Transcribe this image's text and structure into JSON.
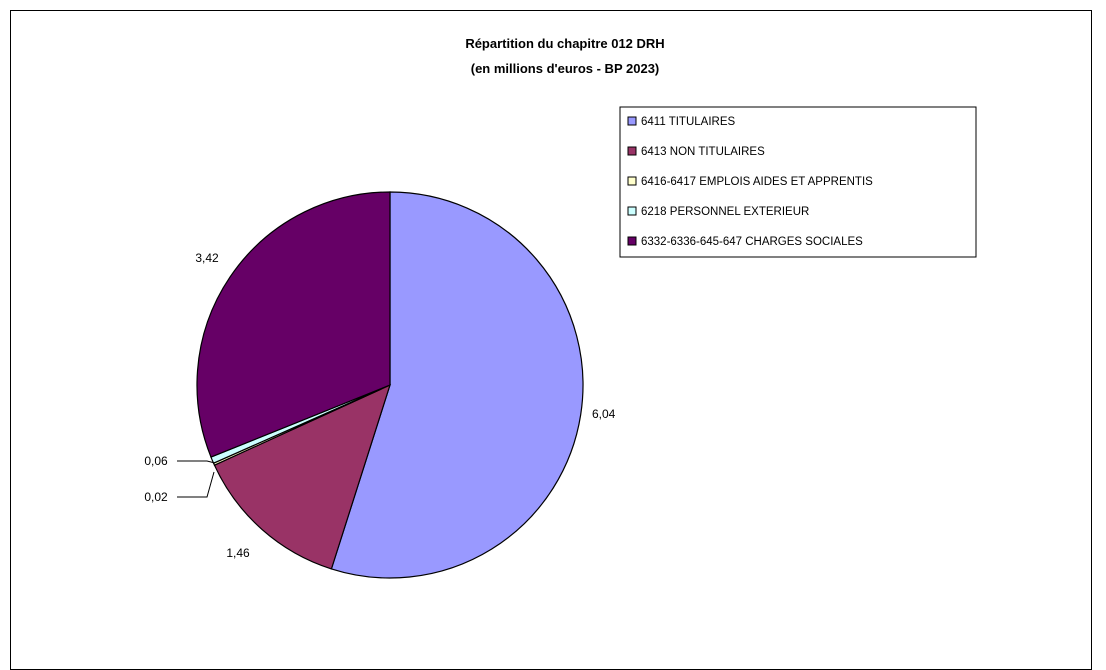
{
  "chart_data": {
    "type": "pie",
    "title": "Répartition du chapitre 012 DRH",
    "subtitle": "(en millions d'euros - BP 2023)",
    "slices": [
      {
        "name": "6411 TITULAIRES",
        "value": 6.04,
        "label": "6,04",
        "color": "#9999FF"
      },
      {
        "name": "6413 NON TITULAIRES",
        "value": 1.46,
        "label": "1,46",
        "color": "#993366"
      },
      {
        "name": "6416-6417 EMPLOIS AIDES ET APPRENTIS",
        "value": 0.02,
        "label": "0,02",
        "color": "#FFFFCC"
      },
      {
        "name": "6218 PERSONNEL EXTERIEUR",
        "value": 0.06,
        "label": "0,06",
        "color": "#CCFFFF"
      },
      {
        "name": "6332-6336-645-647 CHARGES SOCIALES",
        "value": 3.42,
        "label": "3,42",
        "color": "#660066"
      }
    ],
    "legend_position": "top-right"
  }
}
